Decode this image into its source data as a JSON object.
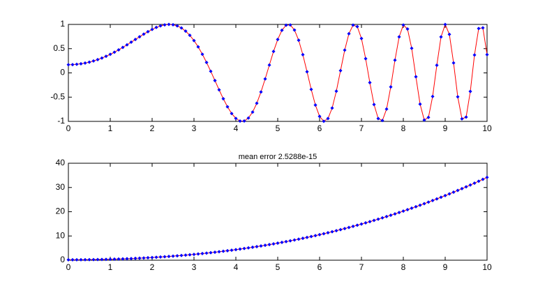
{
  "chart_data": [
    {
      "type": "line",
      "x": [
        0,
        0.1,
        0.2,
        0.3,
        0.4,
        0.5,
        0.6,
        0.7,
        0.8,
        0.9,
        1,
        1.1,
        1.2,
        1.3,
        1.4,
        1.5,
        1.6,
        1.7,
        1.8,
        1.9,
        2,
        2.1,
        2.2,
        2.3,
        2.4,
        2.5,
        2.6,
        2.7,
        2.8,
        2.9,
        3,
        3.1,
        3.2,
        3.3,
        3.4,
        3.5,
        3.6,
        3.7,
        3.8,
        3.9,
        4,
        4.1,
        4.2,
        4.3,
        4.4,
        4.5,
        4.6,
        4.7,
        4.8,
        4.9,
        5,
        5.1,
        5.2,
        5.3,
        5.4,
        5.5,
        5.6,
        5.7,
        5.8,
        5.9,
        6,
        6.1,
        6.2,
        6.3,
        6.4,
        6.5,
        6.6,
        6.7,
        6.8,
        6.9,
        7,
        7.1,
        7.2,
        7.3,
        7.4,
        7.5,
        7.6,
        7.7,
        7.8,
        7.9,
        8,
        8.1,
        8.2,
        8.3,
        8.4,
        8.5,
        8.6,
        8.7,
        8.8,
        8.9,
        9,
        9.1,
        9.2,
        9.3,
        9.4,
        9.5,
        9.6,
        9.7,
        9.8,
        9.9,
        10
      ],
      "series": [
        {
          "color": "#ff0000",
          "marker_color": "#0000ff",
          "values": [
            0.169,
            0.171,
            0.178,
            0.188,
            0.203,
            0.222,
            0.246,
            0.274,
            0.306,
            0.343,
            0.383,
            0.427,
            0.475,
            0.526,
            0.579,
            0.634,
            0.69,
            0.745,
            0.799,
            0.85,
            0.897,
            0.938,
            0.97,
            0.991,
            1,
            0.993,
            0.97,
            0.927,
            0.862,
            0.776,
            0.667,
            0.537,
            0.385,
            0.216,
            0.033,
            -0.158,
            -0.349,
            -0.533,
            -0.699,
            -0.838,
            -0.939,
            -0.993,
            -0.992,
            -0.931,
            -0.808,
            -0.626,
            -0.393,
            -0.124,
            0.162,
            0.443,
            0.69,
            0.879,
            0.984,
            0.989,
            0.884,
            0.674,
            0.376,
            0.024,
            -0.34,
            -0.663,
            -0.897,
            -0.998,
            -0.941,
            -0.725,
            -0.377,
            0.047,
            0.47,
            0.808,
            0.986,
            0.955,
            0.71,
            0.294,
            -0.2,
            -0.652,
            -0.942,
            -0.982,
            -0.746,
            -0.289,
            0.263,
            0.743,
            0.988,
            0.906,
            0.508,
            -0.079,
            -0.644,
            -0.972,
            -0.918,
            -0.486,
            0.158,
            0.742,
            0.999,
            0.795,
            0.206,
            -0.493,
            -0.948,
            -0.912,
            -0.382,
            0.369,
            0.916,
            0.929,
            0.377
          ]
        }
      ],
      "xlim": [
        0,
        10
      ],
      "xticks": [
        0,
        1,
        2,
        3,
        4,
        5,
        6,
        7,
        8,
        9,
        10
      ],
      "ylim": [
        -1,
        1
      ],
      "yticks": [
        -1,
        -0.5,
        0,
        0.5,
        1
      ]
    },
    {
      "type": "line",
      "title": "mean error 2.5288e-15",
      "x": [
        0,
        0.1,
        0.2,
        0.3,
        0.4,
        0.5,
        0.6,
        0.7,
        0.8,
        0.9,
        1,
        1.1,
        1.2,
        1.3,
        1.4,
        1.5,
        1.6,
        1.7,
        1.8,
        1.9,
        2,
        2.1,
        2.2,
        2.3,
        2.4,
        2.5,
        2.6,
        2.7,
        2.8,
        2.9,
        3,
        3.1,
        3.2,
        3.3,
        3.4,
        3.5,
        3.6,
        3.7,
        3.8,
        3.9,
        4,
        4.1,
        4.2,
        4.3,
        4.4,
        4.5,
        4.6,
        4.7,
        4.8,
        4.9,
        5,
        5.1,
        5.2,
        5.3,
        5.4,
        5.5,
        5.6,
        5.7,
        5.8,
        5.9,
        6,
        6.1,
        6.2,
        6.3,
        6.4,
        6.5,
        6.6,
        6.7,
        6.8,
        6.9,
        7,
        7.1,
        7.2,
        7.3,
        7.4,
        7.5,
        7.6,
        7.7,
        7.8,
        7.9,
        8,
        8.1,
        8.2,
        8.3,
        8.4,
        8.5,
        8.6,
        8.7,
        8.8,
        8.9,
        9,
        9.1,
        9.2,
        9.3,
        9.4,
        9.5,
        9.6,
        9.7,
        9.8,
        9.9,
        10
      ],
      "series": [
        {
          "color": "#ff0000",
          "marker_color": "#0000ff",
          "values": [
            0.17,
            0.172,
            0.179,
            0.189,
            0.204,
            0.224,
            0.248,
            0.277,
            0.311,
            0.35,
            0.393,
            0.441,
            0.495,
            0.554,
            0.617,
            0.686,
            0.761,
            0.841,
            0.926,
            1.017,
            1.114,
            1.217,
            1.325,
            1.439,
            1.559,
            1.686,
            1.818,
            1.957,
            2.102,
            2.253,
            2.411,
            2.575,
            2.746,
            2.924,
            3.109,
            3.3,
            3.498,
            3.703,
            3.916,
            4.135,
            4.362,
            4.596,
            4.838,
            5.087,
            5.343,
            5.607,
            5.879,
            6.159,
            6.446,
            6.742,
            7.045,
            7.357,
            7.676,
            8.004,
            8.341,
            8.685,
            9.039,
            9.4,
            9.771,
            10.15,
            10.538,
            10.935,
            11.341,
            11.756,
            12.18,
            12.613,
            13.055,
            13.507,
            13.968,
            14.438,
            14.919,
            15.409,
            15.909,
            16.418,
            16.938,
            17.467,
            18.007,
            18.556,
            19.115,
            19.686,
            20.266,
            20.857,
            21.458,
            22.07,
            22.693,
            23.326,
            23.971,
            24.626,
            25.292,
            25.969,
            26.657,
            27.356,
            28.067,
            28.79,
            29.523,
            30.268,
            31.025,
            31.794,
            32.574,
            33.366,
            34.17
          ]
        }
      ],
      "xlim": [
        0,
        10
      ],
      "xticks": [
        0,
        1,
        2,
        3,
        4,
        5,
        6,
        7,
        8,
        9,
        10
      ],
      "ylim": [
        0,
        40
      ],
      "yticks": [
        0,
        10,
        20,
        30,
        40
      ]
    }
  ]
}
